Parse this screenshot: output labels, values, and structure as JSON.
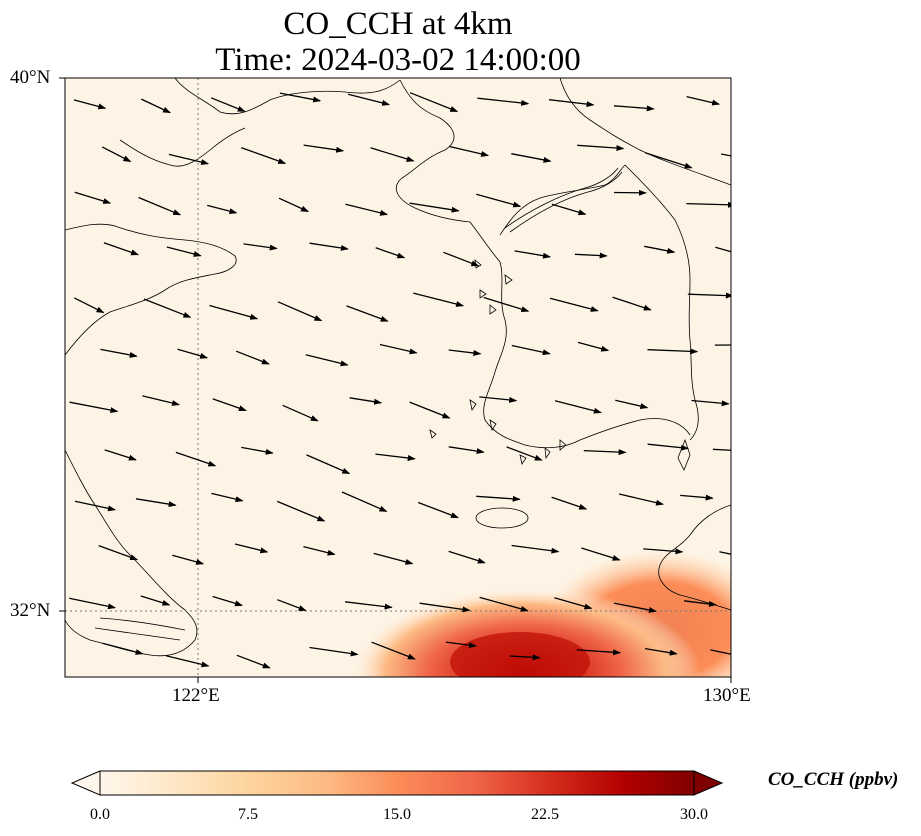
{
  "title": {
    "line1": "CO_CCH at 4km",
    "line2": "Time: 2024-03-02 14:00:00"
  },
  "axes": {
    "y_ticks": [
      "40°N",
      "32°N"
    ],
    "x_ticks": [
      "122°E",
      "130°E"
    ],
    "lon_range": [
      120,
      130
    ],
    "lat_range": [
      31,
      40
    ],
    "gridlines": "dotted at 122°E and 32°N"
  },
  "colorbar": {
    "label": "CO_CCH (ppbv)",
    "ticks": [
      "0.0",
      "7.5",
      "15.0",
      "22.5",
      "30.0"
    ],
    "range": [
      0,
      30
    ],
    "colormap": "OrRd",
    "extend": "both"
  },
  "colors": {
    "background_field": "#fef4e6",
    "plume_low": "#fdd49e",
    "plume_mid": "#ef6548",
    "plume_high": "#b30000",
    "coastline": "#000000",
    "arrows": "#000000"
  },
  "chart_data": {
    "type": "heatmap",
    "variable": "CO_CCH",
    "units": "ppbv",
    "level": "4km",
    "time": "2024-03-02 14:00:00",
    "extent": {
      "lon": [
        120,
        130
      ],
      "lat": [
        31,
        40
      ]
    },
    "hotspot": {
      "region": "south-east corner (near 126–127°E, 31.2°N)",
      "peak_value": 28,
      "edge_value": 10
    },
    "wind_vectors": {
      "prevailing_direction": "from west-northwest (pointing east-southeast)",
      "coverage": "regular grid across the domain"
    }
  }
}
